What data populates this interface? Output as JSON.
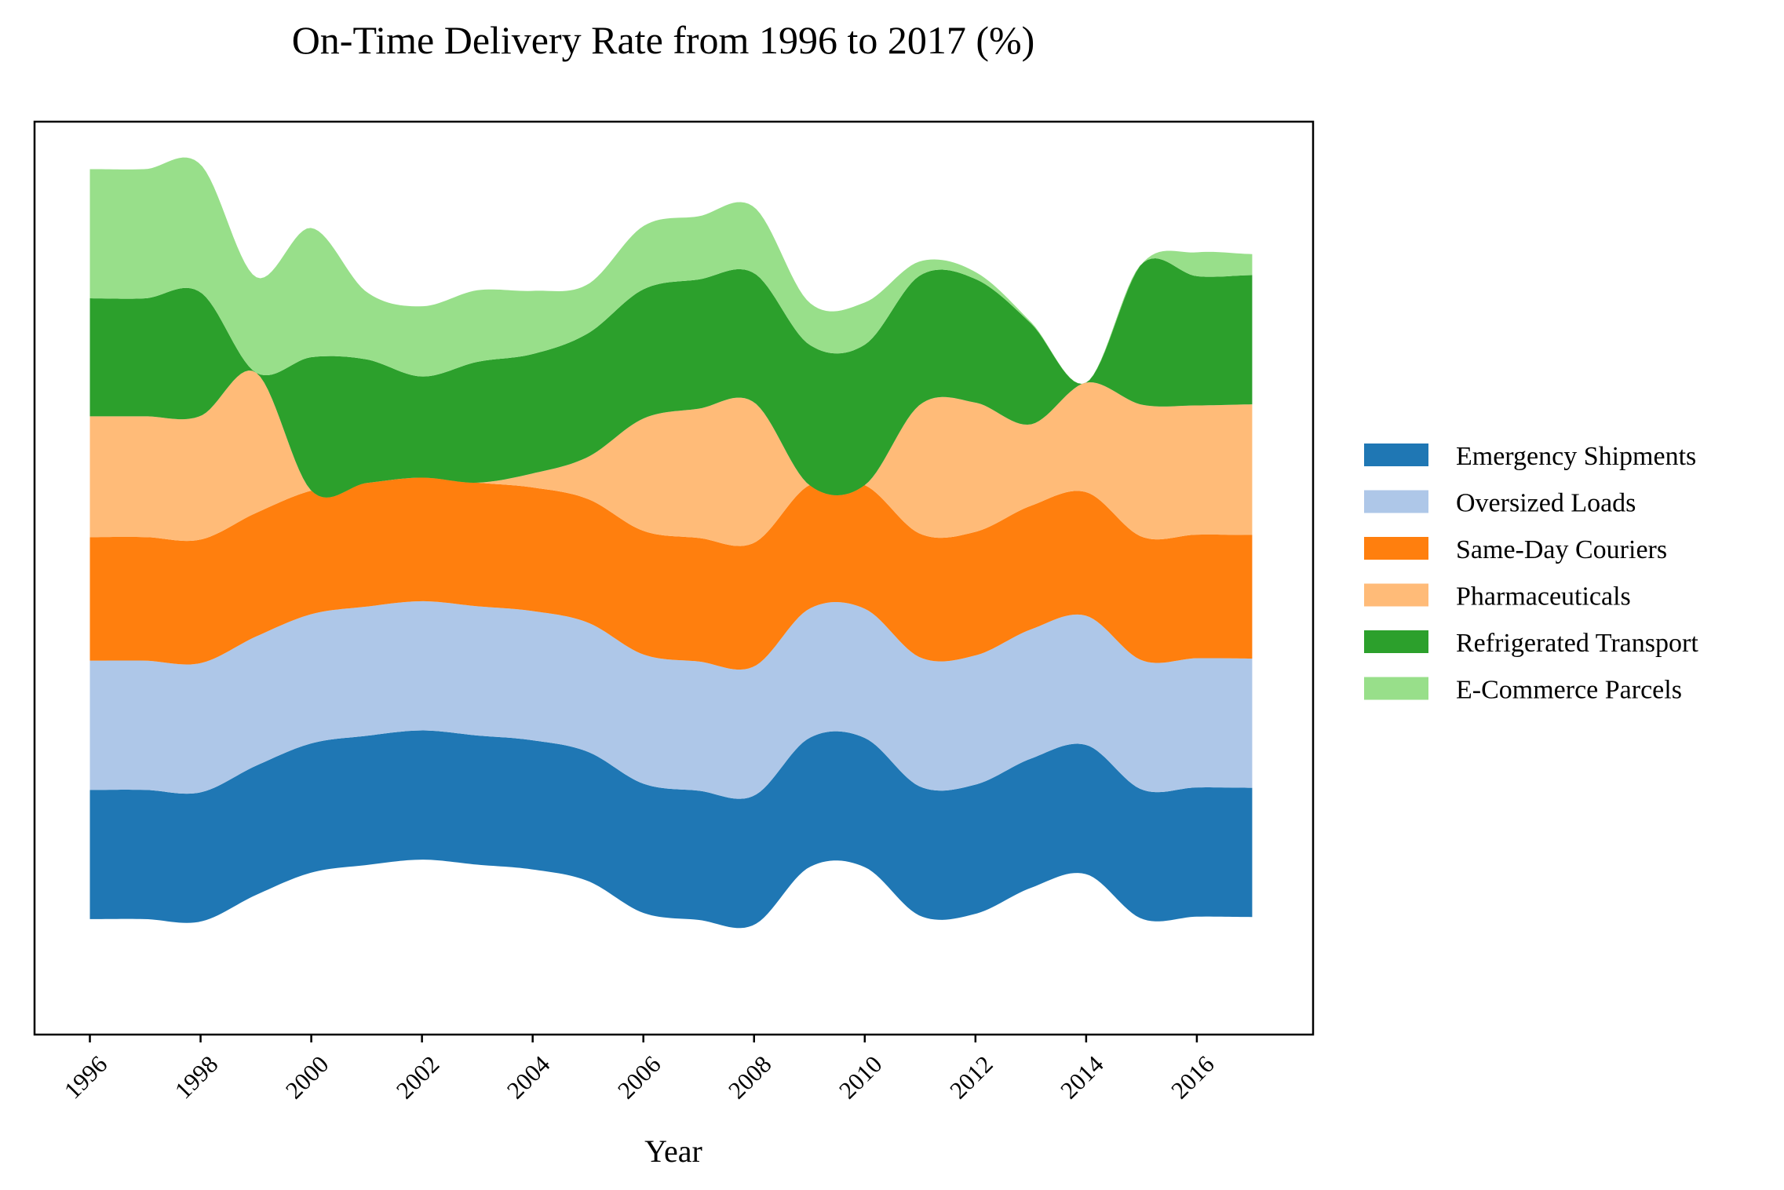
{
  "chart_data": {
    "type": "area",
    "subtype": "streamgraph",
    "title": "On-Time Delivery Rate from 1996 to 2017 (%)",
    "xlabel": "Year",
    "ylabel": "",
    "x": [
      1996,
      1997,
      1998,
      1999,
      2000,
      2001,
      2002,
      2003,
      2004,
      2005,
      2006,
      2007,
      2008,
      2009,
      2010,
      2011,
      2012,
      2013,
      2014,
      2015,
      2016,
      2017
    ],
    "xticks": [
      1996,
      1998,
      2000,
      2002,
      2004,
      2006,
      2008,
      2010,
      2012,
      2014,
      2016
    ],
    "xlim": [
      1995.0,
      2018.1
    ],
    "ylim": [
      -325,
      325
    ],
    "y_axis_ticks_visible": false,
    "grid": false,
    "legend_position": "right",
    "baseline": "wiggle",
    "series": [
      {
        "name": "Emergency Shipments",
        "color": "#1f77b4",
        "values": [
          92,
          92,
          92,
          92,
          92,
          92,
          92,
          92,
          92,
          92,
          92,
          92,
          92,
          92,
          92,
          92,
          92,
          92,
          92,
          92,
          92,
          92
        ]
      },
      {
        "name": "Oversized Loads",
        "color": "#aec7e8",
        "values": [
          92,
          92,
          92,
          92,
          92,
          92,
          92,
          92,
          92,
          92,
          92,
          92,
          92,
          92,
          92,
          92,
          92,
          92,
          92,
          92,
          92,
          92
        ]
      },
      {
        "name": "Same-Day Couriers",
        "color": "#ff7f0e",
        "values": [
          88,
          88,
          88,
          88,
          88,
          88,
          88,
          88,
          88,
          88,
          88,
          88,
          88,
          88,
          88,
          88,
          88,
          88,
          88,
          88,
          88,
          88
        ]
      },
      {
        "name": "Pharmaceuticals",
        "color": "#ffbb78",
        "values": [
          86,
          86,
          88,
          100,
          0,
          0,
          0,
          0,
          10,
          30,
          80,
          92,
          100,
          0,
          0,
          92,
          92,
          58,
          78,
          94,
          92,
          93
        ]
      },
      {
        "name": "Refrigerated Transport",
        "color": "#2ca02c",
        "values": [
          84,
          84,
          88,
          0,
          95,
          88,
          72,
          86,
          85,
          88,
          92,
          92,
          92,
          100,
          100,
          92,
          88,
          72,
          0,
          100,
          92,
          92
        ]
      },
      {
        "name": "E-Commerce Parcels",
        "color": "#98df8a",
        "values": [
          92,
          92,
          91,
          68,
          92,
          48,
          50,
          51,
          45,
          35,
          45,
          45,
          47,
          30,
          30,
          10,
          5,
          1,
          0,
          0,
          17,
          15
        ]
      }
    ],
    "legend": [
      "Emergency Shipments",
      "Oversized Loads",
      "Same-Day Couriers",
      "Pharmaceuticals",
      "Refrigerated Transport",
      "E-Commerce Parcels"
    ]
  }
}
